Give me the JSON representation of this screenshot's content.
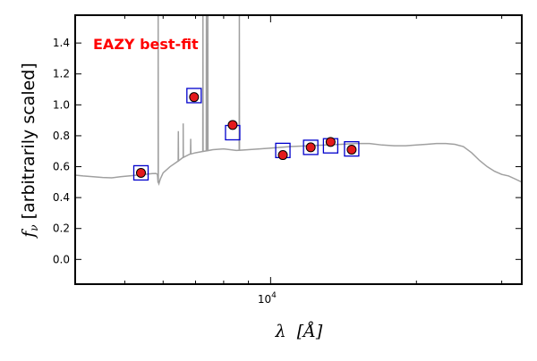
{
  "chart_data": {
    "type": "scatter",
    "annotation": "EAZY best-fit",
    "xlabel": {
      "symbol": "λ",
      "unit": "[Å]"
    },
    "ylabel": {
      "symbol": "f",
      "subscript": "ν",
      "text": "[arbitrarily scaled]"
    },
    "xscale": "log",
    "xlim": [
      3950,
      33000
    ],
    "ylim": [
      -0.16,
      1.58
    ],
    "x_major_tick": {
      "value": 10000,
      "base": "10",
      "exponent": "4"
    },
    "x_minor_ticks": [
      5000,
      6000,
      7000,
      8000,
      9000,
      20000,
      30000
    ],
    "y_ticks": [
      0.0,
      0.2,
      0.4,
      0.6,
      0.8,
      1.0,
      1.2,
      1.4
    ],
    "y_tick_labels": [
      "0.0",
      "0.2",
      "0.4",
      "0.6",
      "0.8",
      "1.0",
      "1.2",
      "1.4"
    ],
    "grid": false,
    "colors": {
      "model": "#a0a0a0",
      "observed_fill": "#e31a1c",
      "observed_edge": "#000000",
      "model_box": "#0000cc",
      "annotation": "#ff0000"
    },
    "model_spectrum": {
      "continuum": [
        [
          3950,
          0.545
        ],
        [
          4100,
          0.54
        ],
        [
          4300,
          0.535
        ],
        [
          4500,
          0.53
        ],
        [
          4700,
          0.528
        ],
        [
          4900,
          0.535
        ],
        [
          5100,
          0.54
        ],
        [
          5300,
          0.545
        ],
        [
          5500,
          0.55
        ],
        [
          5700,
          0.555
        ],
        [
          5800,
          0.556
        ],
        [
          5840,
          0.55
        ],
        [
          5860,
          0.5
        ],
        [
          5880,
          0.49
        ],
        [
          5920,
          0.52
        ],
        [
          6000,
          0.56
        ],
        [
          6200,
          0.6
        ],
        [
          6400,
          0.63
        ],
        [
          6600,
          0.66
        ],
        [
          6800,
          0.68
        ],
        [
          7000,
          0.69
        ],
        [
          7300,
          0.7
        ],
        [
          7600,
          0.71
        ],
        [
          8000,
          0.715
        ],
        [
          8500,
          0.705
        ],
        [
          9000,
          0.71
        ],
        [
          9500,
          0.715
        ],
        [
          10000,
          0.72
        ],
        [
          11000,
          0.73
        ],
        [
          12000,
          0.735
        ],
        [
          13000,
          0.74
        ],
        [
          14000,
          0.745
        ],
        [
          15000,
          0.75
        ],
        [
          16000,
          0.75
        ],
        [
          17000,
          0.74
        ],
        [
          18000,
          0.735
        ],
        [
          19000,
          0.735
        ],
        [
          20000,
          0.74
        ],
        [
          21000,
          0.745
        ],
        [
          22000,
          0.75
        ],
        [
          23000,
          0.75
        ],
        [
          24000,
          0.745
        ],
        [
          25000,
          0.73
        ],
        [
          26000,
          0.69
        ],
        [
          27000,
          0.64
        ],
        [
          28000,
          0.6
        ],
        [
          29000,
          0.57
        ],
        [
          30000,
          0.55
        ],
        [
          31000,
          0.54
        ],
        [
          32000,
          0.52
        ],
        [
          33000,
          0.5
        ]
      ],
      "lines": [
        {
          "x": 5860,
          "peak": 1.58
        },
        {
          "x": 6450,
          "peak": 0.83
        },
        {
          "x": 6600,
          "peak": 0.88
        },
        {
          "x": 6840,
          "peak": 0.78
        },
        {
          "x": 7250,
          "peak": 1.58
        },
        {
          "x": 7370,
          "peak": 1.58
        },
        {
          "x": 7420,
          "peak": 1.58
        },
        {
          "x": 8620,
          "peak": 1.58
        }
      ]
    },
    "observed": [
      {
        "x": 5400,
        "y": 0.56
      },
      {
        "x": 6950,
        "y": 1.05
      },
      {
        "x": 8350,
        "y": 0.87
      },
      {
        "x": 10600,
        "y": 0.675
      },
      {
        "x": 12100,
        "y": 0.725
      },
      {
        "x": 13300,
        "y": 0.76
      },
      {
        "x": 14700,
        "y": 0.71
      }
    ],
    "model_photometry": [
      {
        "x": 5400,
        "y": 0.56
      },
      {
        "x": 6950,
        "y": 1.06
      },
      {
        "x": 8350,
        "y": 0.82
      },
      {
        "x": 10600,
        "y": 0.705
      },
      {
        "x": 12100,
        "y": 0.725
      },
      {
        "x": 13300,
        "y": 0.735
      },
      {
        "x": 14700,
        "y": 0.715
      }
    ]
  }
}
